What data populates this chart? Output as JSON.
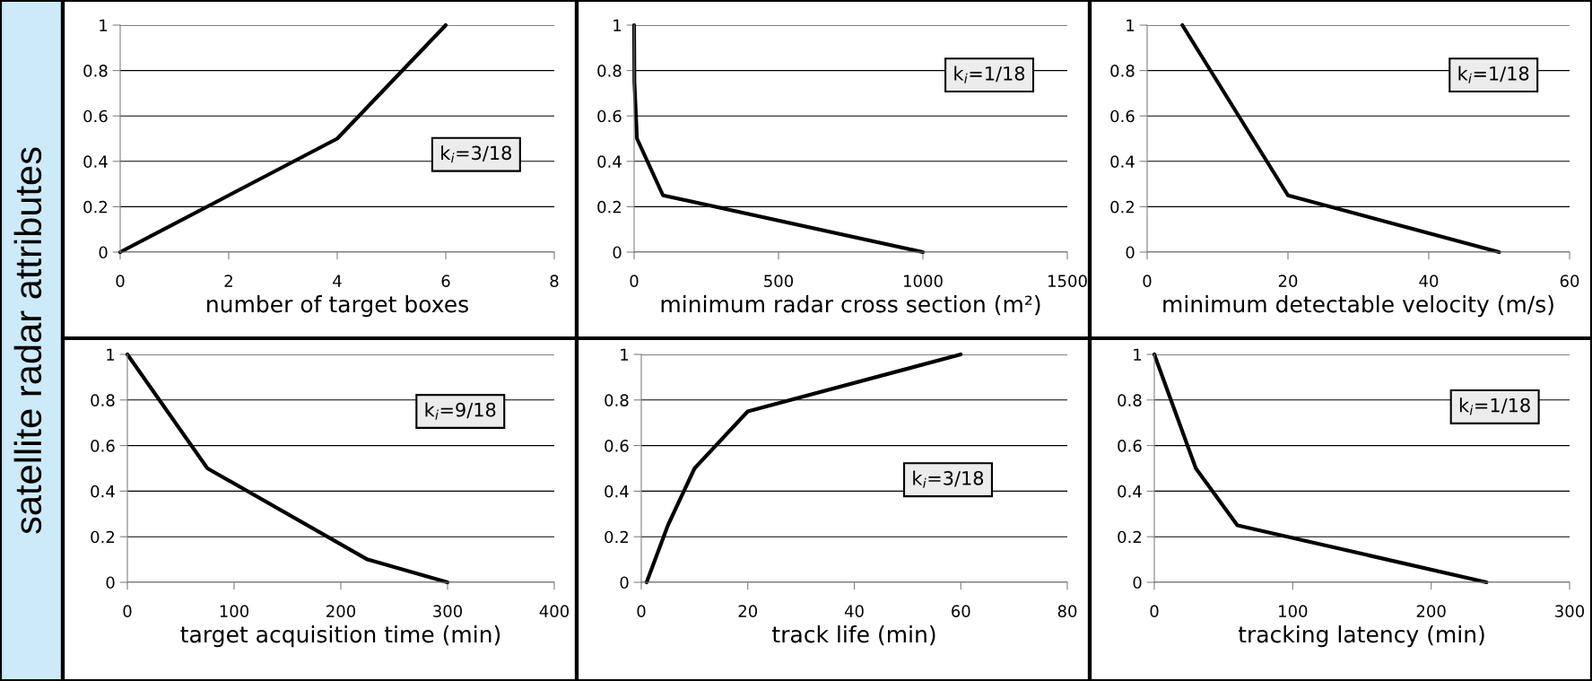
{
  "chart_data": [
    {
      "type": "line",
      "ylabel": "satellite radar attributes",
      "xlabel": "number of target boxes",
      "x": [
        0,
        4,
        6
      ],
      "series": [
        {
          "color": "#000000",
          "values": [
            0,
            0.5,
            1
          ]
        }
      ],
      "xlim": [
        0,
        8
      ],
      "xticks": [
        0,
        2,
        4,
        6,
        8
      ],
      "ylim": [
        0,
        1
      ],
      "yticks": [
        0,
        0.2,
        0.4,
        0.6,
        0.8,
        1
      ],
      "grid": "y",
      "annotations": [
        "k$_{i}$=3/18"
      ]
    },
    {
      "type": "line",
      "xlabel": "minimum radar cross section (m²)",
      "x": [
        0,
        1,
        10,
        100,
        1000
      ],
      "series": [
        {
          "color": "#000000",
          "values": [
            1,
            0.75,
            0.5,
            0.25,
            0
          ]
        }
      ],
      "xlim": [
        0,
        1500
      ],
      "xticks": [
        0,
        500,
        1000,
        1500
      ],
      "ylim": [
        0,
        1
      ],
      "yticks": [
        0,
        0.2,
        0.4,
        0.6,
        0.8,
        1
      ],
      "grid": "y",
      "annotations": [
        "k$_{i}$=1/18"
      ]
    },
    {
      "type": "line",
      "xlabel": "minimum detectable velocity (m/s)",
      "x": [
        5,
        20,
        50
      ],
      "series": [
        {
          "color": "#000000",
          "values": [
            1,
            0.25,
            0
          ]
        }
      ],
      "xlim": [
        0,
        60
      ],
      "xticks": [
        0,
        20,
        40,
        60
      ],
      "ylim": [
        0,
        1
      ],
      "yticks": [
        0,
        0.2,
        0.4,
        0.6,
        0.8,
        1
      ],
      "grid": "y",
      "annotations": [
        "k$_{i}$=1/18"
      ]
    },
    {
      "type": "line",
      "xlabel": "target acquisition time (min)",
      "x": [
        0,
        75,
        225,
        300
      ],
      "series": [
        {
          "color": "#000000",
          "values": [
            1,
            0.5,
            0.1,
            0
          ]
        }
      ],
      "xlim": [
        0,
        400
      ],
      "xticks": [
        0,
        100,
        200,
        300,
        400
      ],
      "ylim": [
        0,
        1
      ],
      "yticks": [
        0,
        0.2,
        0.4,
        0.6,
        0.8,
        1
      ],
      "grid": "y",
      "annotations": [
        "k$_{i}$=9/18"
      ]
    },
    {
      "type": "line",
      "xlabel": "track life (min)",
      "x": [
        1,
        5,
        10,
        20,
        60
      ],
      "series": [
        {
          "color": "#000000",
          "values": [
            0,
            0.25,
            0.5,
            0.75,
            1
          ]
        }
      ],
      "xlim": [
        0,
        80
      ],
      "xticks": [
        0,
        20,
        40,
        60,
        80
      ],
      "ylim": [
        0,
        1
      ],
      "yticks": [
        0,
        0.2,
        0.4,
        0.6,
        0.8,
        1
      ],
      "grid": "y",
      "annotations": [
        "k$_{i}$=3/18"
      ]
    },
    {
      "type": "line",
      "xlabel": "tracking latency (min)",
      "x": [
        0,
        30,
        60,
        240
      ],
      "series": [
        {
          "color": "#000000",
          "values": [
            1,
            0.5,
            0.25,
            0
          ]
        }
      ],
      "xlim": [
        0,
        300
      ],
      "xticks": [
        0,
        100,
        200,
        300
      ],
      "ylim": [
        0,
        1
      ],
      "yticks": [
        0,
        0.2,
        0.4,
        0.6,
        0.8,
        1
      ],
      "grid": "y",
      "annotations": [
        "k$_{i}$=1/18"
      ]
    }
  ]
}
